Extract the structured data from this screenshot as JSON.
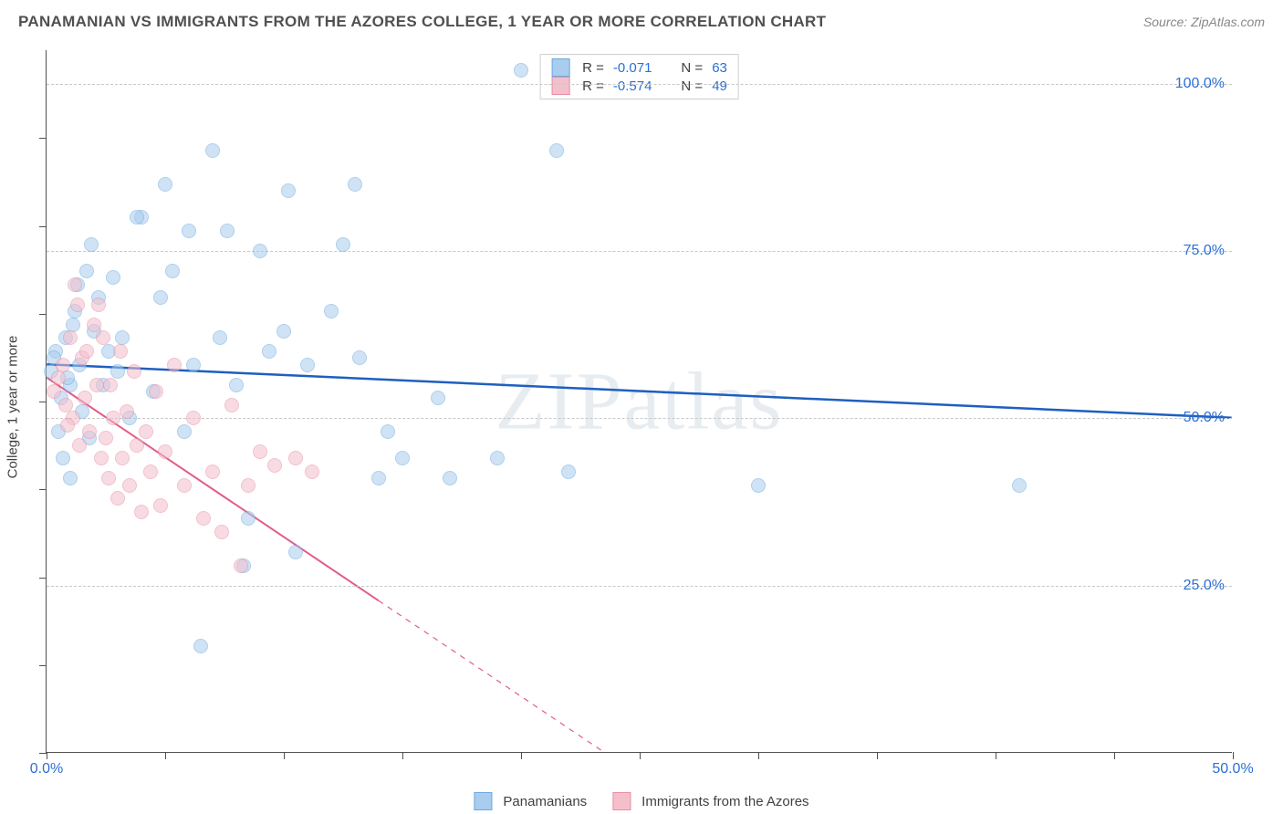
{
  "title": "PANAMANIAN VS IMMIGRANTS FROM THE AZORES COLLEGE, 1 YEAR OR MORE CORRELATION CHART",
  "source": "Source: ZipAtlas.com",
  "watermark": "ZIPatlas",
  "y_axis_title": "College, 1 year or more",
  "chart": {
    "type": "scatter",
    "background_color": "#ffffff",
    "grid_color": "#c8c8c8",
    "axis_color": "#505050",
    "xlim": [
      0,
      50
    ],
    "ylim": [
      0,
      105
    ],
    "x_ticks": [
      0,
      5,
      10,
      15,
      20,
      25,
      30,
      35,
      40,
      45,
      50
    ],
    "x_tick_labels": {
      "0": "0.0%",
      "50": "50.0%"
    },
    "y_gridlines": [
      25,
      50,
      75,
      100
    ],
    "y_labels": {
      "25": "25.0%",
      "50": "50.0%",
      "75": "75.0%",
      "100": "100.0%"
    },
    "y_label_color": "#2b6fd6",
    "x_label_color": "#2b6fd6",
    "label_fontsize": 16,
    "marker_radius": 8,
    "marker_opacity": 0.55,
    "series": [
      {
        "name": "Panamanians",
        "fill": "#a9cdee",
        "stroke": "#6ca9e0",
        "trend_color": "#1e5fc0",
        "trend_width": 2.5,
        "R": "-0.071",
        "N": "63",
        "trend": {
          "x1": 0,
          "y1": 58,
          "x2": 50,
          "y2": 50,
          "dash_after_x": 50
        },
        "points": [
          [
            0.2,
            57
          ],
          [
            0.4,
            60
          ],
          [
            0.6,
            53
          ],
          [
            0.8,
            62
          ],
          [
            1.0,
            55
          ],
          [
            1.2,
            66
          ],
          [
            1.3,
            70
          ],
          [
            1.4,
            58
          ],
          [
            1.5,
            51
          ],
          [
            1.7,
            72
          ],
          [
            1.8,
            47
          ],
          [
            2.0,
            63
          ],
          [
            2.2,
            68
          ],
          [
            2.4,
            55
          ],
          [
            2.6,
            60
          ],
          [
            0.5,
            48
          ],
          [
            0.7,
            44
          ],
          [
            3.0,
            57
          ],
          [
            3.2,
            62
          ],
          [
            3.5,
            50
          ],
          [
            4.0,
            80
          ],
          [
            4.5,
            54
          ],
          [
            5.0,
            85
          ],
          [
            5.3,
            72
          ],
          [
            1.0,
            41
          ],
          [
            6.0,
            78
          ],
          [
            6.2,
            58
          ],
          [
            6.5,
            16
          ],
          [
            7.0,
            90
          ],
          [
            7.3,
            62
          ],
          [
            7.6,
            78
          ],
          [
            8.0,
            55
          ],
          [
            8.3,
            28
          ],
          [
            8.5,
            35
          ],
          [
            9.0,
            75
          ],
          [
            9.4,
            60
          ],
          [
            10.0,
            63
          ],
          [
            10.2,
            84
          ],
          [
            10.5,
            30
          ],
          [
            11.0,
            58
          ],
          [
            12.0,
            66
          ],
          [
            12.5,
            76
          ],
          [
            13.0,
            85
          ],
          [
            13.2,
            59
          ],
          [
            14.0,
            41
          ],
          [
            14.4,
            48
          ],
          [
            15.0,
            44
          ],
          [
            16.5,
            53
          ],
          [
            17.0,
            41
          ],
          [
            19.0,
            44
          ],
          [
            20.0,
            102
          ],
          [
            21.5,
            90
          ],
          [
            22.0,
            42
          ],
          [
            30.0,
            40
          ],
          [
            41.0,
            40
          ],
          [
            1.9,
            76
          ],
          [
            2.8,
            71
          ],
          [
            0.3,
            59
          ],
          [
            0.9,
            56
          ],
          [
            1.1,
            64
          ],
          [
            3.8,
            80
          ],
          [
            5.8,
            48
          ],
          [
            4.8,
            68
          ]
        ]
      },
      {
        "name": "Immigrants from the Azores",
        "fill": "#f4bfcb",
        "stroke": "#e78fa5",
        "trend_color": "#e15d8a",
        "trend_width": 2,
        "R": "-0.574",
        "N": "49",
        "trend": {
          "x1": 0,
          "y1": 56,
          "x2": 23.5,
          "y2": 0,
          "dash_after_x": 14
        },
        "points": [
          [
            0.3,
            54
          ],
          [
            0.5,
            56
          ],
          [
            0.7,
            58
          ],
          [
            0.8,
            52
          ],
          [
            1.0,
            62
          ],
          [
            1.1,
            50
          ],
          [
            1.3,
            67
          ],
          [
            1.4,
            46
          ],
          [
            1.5,
            59
          ],
          [
            1.6,
            53
          ],
          [
            1.7,
            60
          ],
          [
            1.8,
            48
          ],
          [
            2.0,
            64
          ],
          [
            2.1,
            55
          ],
          [
            2.2,
            67
          ],
          [
            2.3,
            44
          ],
          [
            2.5,
            47
          ],
          [
            2.6,
            41
          ],
          [
            2.7,
            55
          ],
          [
            2.8,
            50
          ],
          [
            3.0,
            38
          ],
          [
            3.2,
            44
          ],
          [
            3.4,
            51
          ],
          [
            3.5,
            40
          ],
          [
            3.7,
            57
          ],
          [
            3.8,
            46
          ],
          [
            4.0,
            36
          ],
          [
            4.2,
            48
          ],
          [
            4.4,
            42
          ],
          [
            4.6,
            54
          ],
          [
            4.8,
            37
          ],
          [
            5.0,
            45
          ],
          [
            5.4,
            58
          ],
          [
            5.8,
            40
          ],
          [
            6.2,
            50
          ],
          [
            6.6,
            35
          ],
          [
            7.0,
            42
          ],
          [
            7.4,
            33
          ],
          [
            7.8,
            52
          ],
          [
            8.2,
            28
          ],
          [
            8.5,
            40
          ],
          [
            9.0,
            45
          ],
          [
            9.6,
            43
          ],
          [
            10.5,
            44
          ],
          [
            11.2,
            42
          ],
          [
            1.2,
            70
          ],
          [
            0.9,
            49
          ],
          [
            2.4,
            62
          ],
          [
            3.1,
            60
          ]
        ]
      }
    ]
  },
  "legend_top": {
    "rows": [
      {
        "swatch_fill": "#a9cdee",
        "swatch_stroke": "#6ca9e0",
        "r_label": "R =",
        "r_val": "-0.071",
        "n_label": "N =",
        "n_val": "63"
      },
      {
        "swatch_fill": "#f4bfcb",
        "swatch_stroke": "#e78fa5",
        "r_label": "R =",
        "r_val": "-0.574",
        "n_label": "N =",
        "n_val": "49"
      }
    ]
  },
  "legend_bottom": {
    "items": [
      {
        "swatch_fill": "#a9cdee",
        "swatch_stroke": "#6ca9e0",
        "label": "Panamanians"
      },
      {
        "swatch_fill": "#f4bfcb",
        "swatch_stroke": "#e78fa5",
        "label": "Immigrants from the Azores"
      }
    ]
  }
}
